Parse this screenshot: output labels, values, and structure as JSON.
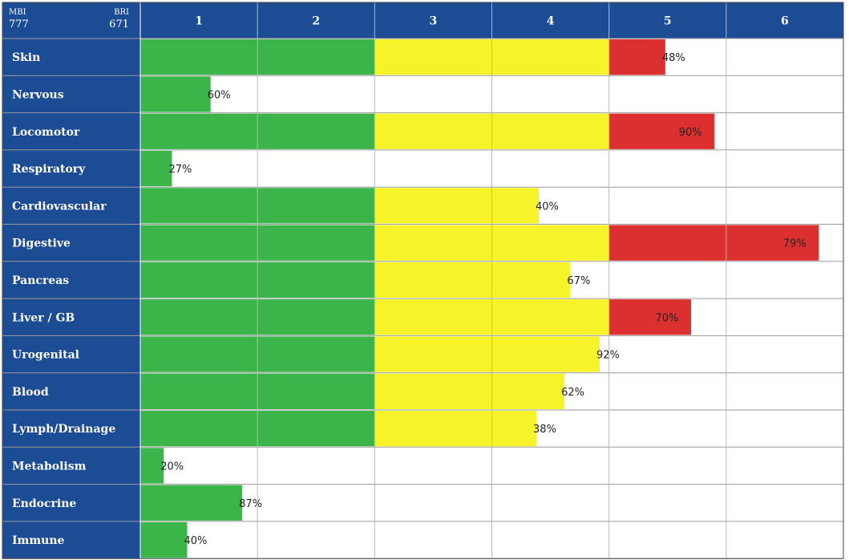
{
  "header": {
    "left_label": "MBI",
    "left_value": "777",
    "right_label": "BRI",
    "right_value": "671"
  },
  "colors": {
    "header_blue": "#1c4c94",
    "green": "#3bb549",
    "yellow": "#f6f32a",
    "red": "#dc2f2f",
    "grid": "#9a9a9a"
  },
  "chart_data": {
    "type": "bar",
    "orientation": "horizontal",
    "columns": [
      "1",
      "2",
      "3",
      "4",
      "5",
      "6"
    ],
    "xlim": [
      0,
      6
    ],
    "categories": [
      "Skin",
      "Nervous",
      "Locomotor",
      "Respiratory",
      "Cardiovascular",
      "Digestive",
      "Pancreas",
      "Liver / GB",
      "Urogenital",
      "Blood",
      "Lymph/Drainage",
      "Metabolism",
      "Endocrine",
      "Immune"
    ],
    "values": [
      4.48,
      0.6,
      4.9,
      0.27,
      3.4,
      5.79,
      3.67,
      4.7,
      3.92,
      3.62,
      3.38,
      0.2,
      0.87,
      0.4
    ],
    "labels": [
      "48%",
      "60%",
      "90%",
      "27%",
      "40%",
      "79%",
      "67%",
      "70%",
      "92%",
      "62%",
      "38%",
      "20%",
      "87%",
      "40%"
    ],
    "zones": [
      {
        "from": 0,
        "to": 2,
        "color": "green"
      },
      {
        "from": 2,
        "to": 4,
        "color": "yellow"
      },
      {
        "from": 4,
        "to": 6,
        "color": "red"
      }
    ],
    "grid": true
  }
}
